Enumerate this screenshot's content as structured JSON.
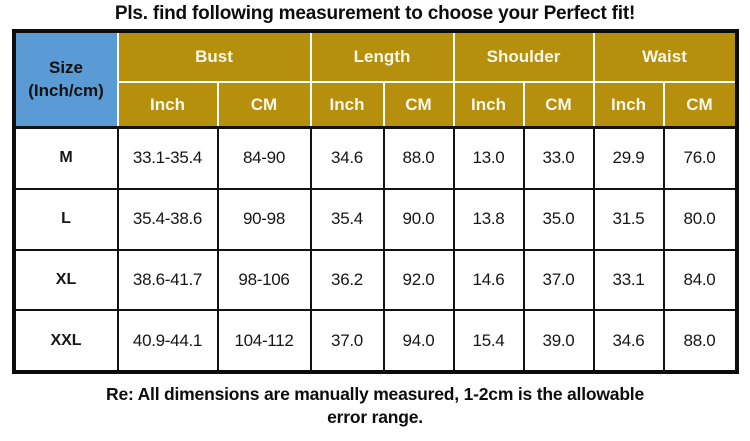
{
  "page": {
    "title": "Pls. find following measurement to choose your Perfect fit!",
    "footer_note": "Re: All dimensions are manually measured, 1-2cm is the allowable error range."
  },
  "colors": {
    "size_header_blue": "#5B9BD5",
    "group_header_gold": "#B6900C",
    "header_text": "#FBF7EB",
    "grid_border": "#121212"
  },
  "chart_data": {
    "type": "table",
    "title": "Pls. find following measurement to choose your Perfect fit!",
    "size_header_line1": "Size",
    "size_header_line2": "(Inch/cm)",
    "groups": [
      {
        "label": "Bust",
        "sub": [
          "Inch",
          "CM"
        ]
      },
      {
        "label": "Length",
        "sub": [
          "Inch",
          "CM"
        ]
      },
      {
        "label": "Shoulder",
        "sub": [
          "Inch",
          "CM"
        ]
      },
      {
        "label": "Waist",
        "sub": [
          "Inch",
          "CM"
        ]
      }
    ],
    "rows": [
      {
        "size": "M",
        "values": [
          "33.1-35.4",
          "84-90",
          "34.6",
          "88.0",
          "13.0",
          "33.0",
          "29.9",
          "76.0"
        ]
      },
      {
        "size": "L",
        "values": [
          "35.4-38.6",
          "90-98",
          "35.4",
          "90.0",
          "13.8",
          "35.0",
          "31.5",
          "80.0"
        ]
      },
      {
        "size": "XL",
        "values": [
          "38.6-41.7",
          "98-106",
          "36.2",
          "92.0",
          "14.6",
          "37.0",
          "33.1",
          "84.0"
        ]
      },
      {
        "size": "XXL",
        "values": [
          "40.9-44.1",
          "104-112",
          "37.0",
          "94.0",
          "15.4",
          "39.0",
          "34.6",
          "88.0"
        ]
      }
    ],
    "note": "Re: All dimensions are manually measured, 1-2cm is the allowable error range."
  }
}
